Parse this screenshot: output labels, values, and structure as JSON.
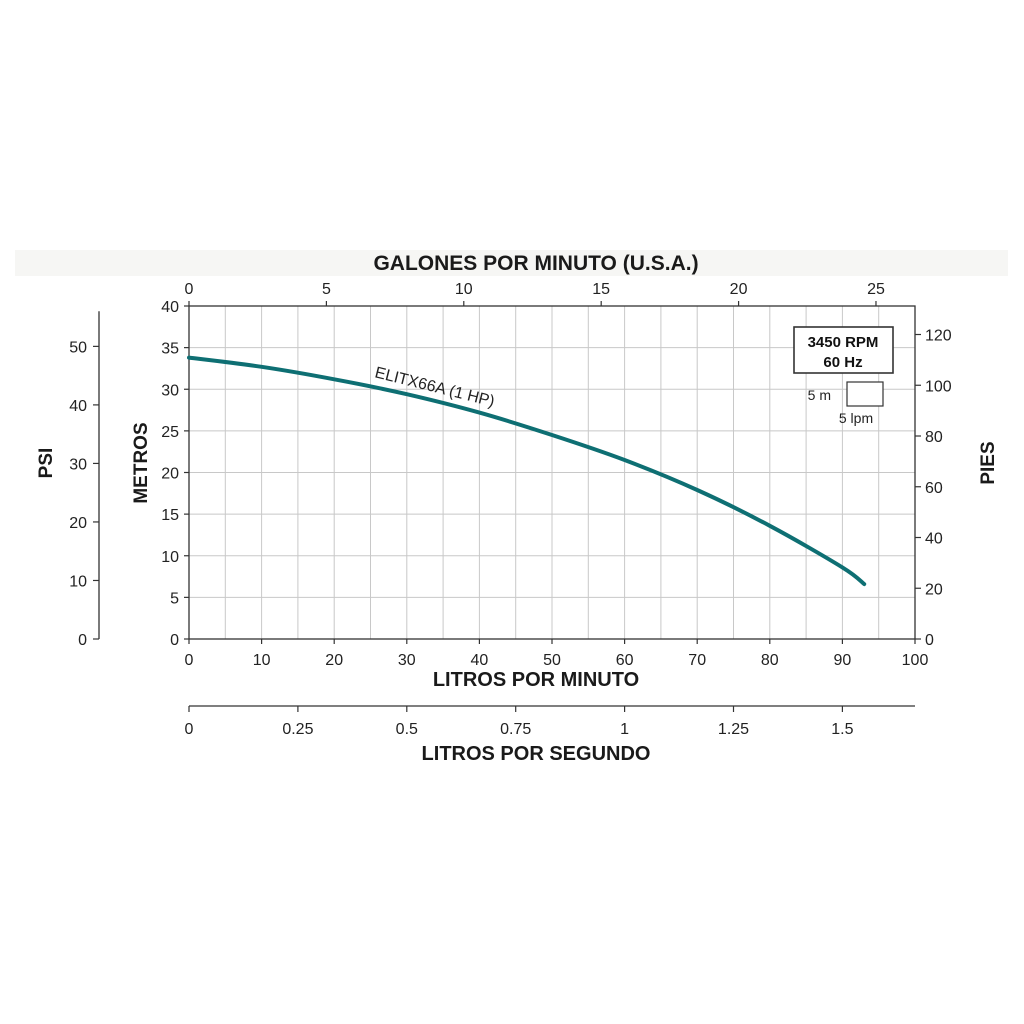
{
  "chart_data": {
    "type": "line",
    "series": [
      {
        "name": "ELITX66A (1 HP)",
        "x": [
          0,
          10,
          20,
          30,
          40,
          50,
          60,
          70,
          80,
          90,
          93
        ],
        "y": [
          33.8,
          32.7,
          31.2,
          29.4,
          27.2,
          24.5,
          21.5,
          17.9,
          13.6,
          8.6,
          6.6
        ]
      }
    ],
    "color": "#0e6f73",
    "xlabel": "LITROS POR MINUTO",
    "ylabel": "METROS",
    "xlim": [
      0,
      100
    ],
    "ylim": [
      0,
      40
    ],
    "x_ticks": [
      "0",
      "10",
      "20",
      "30",
      "40",
      "50",
      "60",
      "70",
      "80",
      "90",
      "100"
    ],
    "y_ticks": [
      "0",
      "5",
      "10",
      "15",
      "20",
      "25",
      "30",
      "35",
      "40"
    ],
    "grid": true,
    "top_axis": {
      "label": "GALONES POR MINUTO (U.S.A.)",
      "ticks": [
        "0",
        "5",
        "10",
        "15",
        "20",
        "25"
      ],
      "values": [
        0,
        5,
        10,
        15,
        20,
        25
      ],
      "lpm_per_unit": 3.785
    },
    "right_axis": {
      "label": "PIES",
      "ticks": [
        "0",
        "20",
        "40",
        "60",
        "80",
        "100",
        "120"
      ],
      "values": [
        0,
        20,
        40,
        60,
        80,
        100,
        120
      ],
      "m_per_unit": 0.3048
    },
    "left_outer_axis": {
      "label": "PSI",
      "ticks": [
        "0",
        "10",
        "20",
        "30",
        "40",
        "50"
      ],
      "values": [
        0,
        10,
        20,
        30,
        40,
        50
      ],
      "m_per_unit": 0.703
    },
    "bottom2_axis": {
      "label": "LITROS POR SEGUNDO",
      "ticks": [
        "0",
        "0.25",
        "0.5",
        "0.75",
        "1",
        "1.25",
        "1.5"
      ],
      "values": [
        0,
        0.25,
        0.5,
        0.75,
        1,
        1.25,
        1.5
      ],
      "lpm_per_unit": 60
    },
    "legend": {
      "position": "top-right",
      "line1": "3450 RPM",
      "line2": "60 Hz",
      "scale_v": "5 m",
      "scale_h": "5 lpm"
    }
  }
}
